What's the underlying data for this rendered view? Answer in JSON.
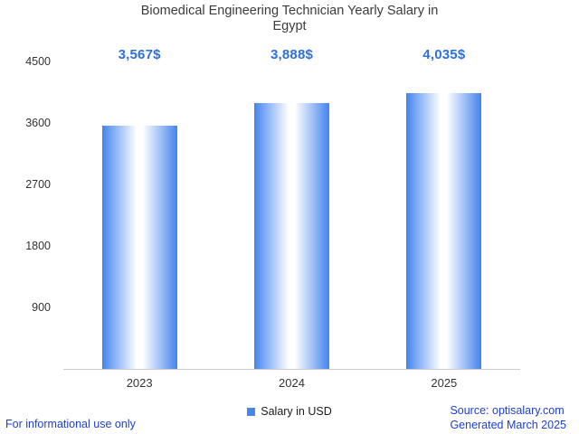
{
  "title": "Biomedical Engineering Technician Yearly Salary in Egypt",
  "chart_data": {
    "type": "bar",
    "title": "Biomedical Engineering Technician Yearly Salary in Egypt",
    "categories": [
      "2023",
      "2024",
      "2025"
    ],
    "values": [
      3567,
      3888,
      4035
    ],
    "value_labels": [
      "3,567$",
      "3,888$",
      "4,035$"
    ],
    "legend": "Salary in USD",
    "legend_position": "bottom",
    "xlabel": "",
    "ylabel": "",
    "ylim": [
      0,
      4500
    ],
    "yticks": [
      900,
      1800,
      2700,
      3600,
      4500
    ],
    "grid": false
  },
  "footer": {
    "left": "For informational use only",
    "source": "Source: optisalary.com",
    "generated": "Generated March 2025"
  },
  "colors": {
    "title": "#3b3b3b",
    "axis": "#333333",
    "baseline": "#cccccc",
    "label": "#2e70da",
    "link": "#1e3fd2",
    "bar_edge": "#4484ef",
    "bar_center": "#ffffff",
    "legend_swatch": "#4a86e8"
  }
}
